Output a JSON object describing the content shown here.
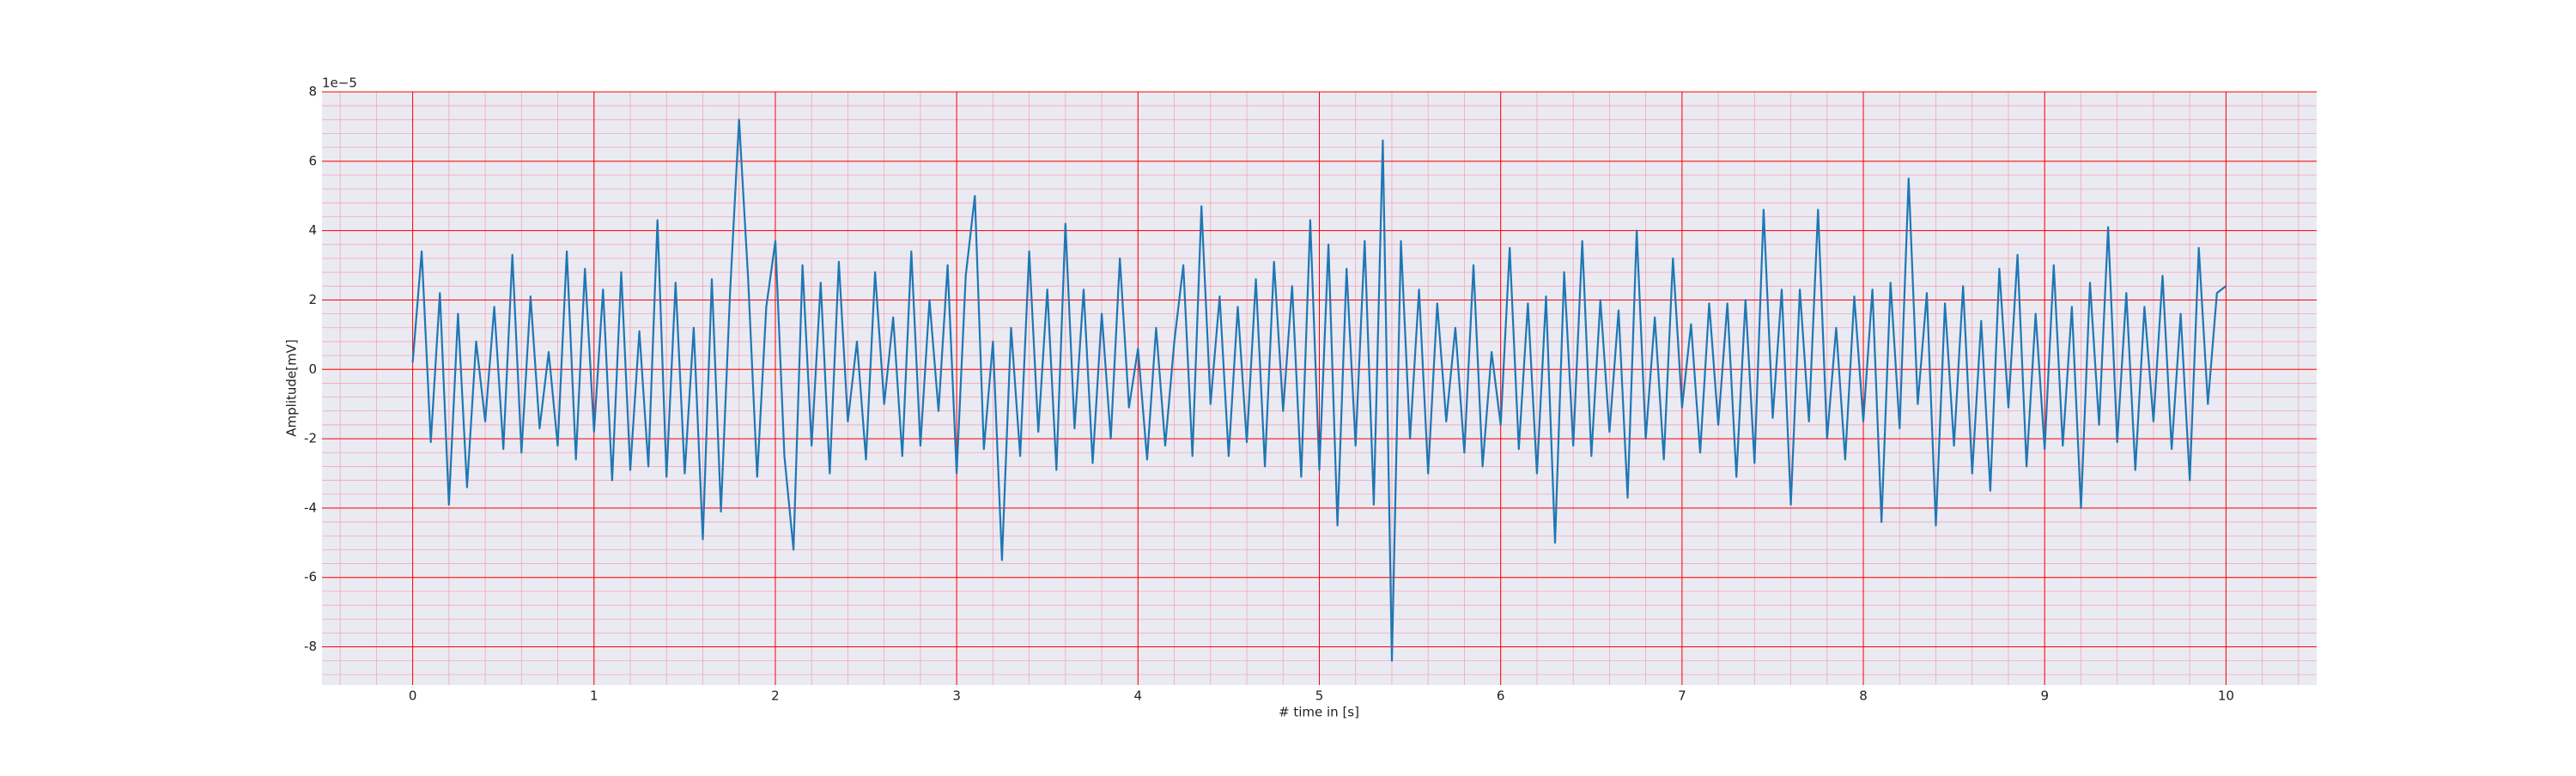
{
  "chart_data": {
    "type": "line",
    "x_label": "# time in [s]",
    "y_label": "Amplitude[mV]",
    "y_offset_label": "1e−5",
    "xlim": [
      -0.5,
      10.5
    ],
    "ylim": [
      -9.1,
      8
    ],
    "xticks": [
      0,
      1,
      2,
      3,
      4,
      5,
      6,
      7,
      8,
      9,
      10
    ],
    "yticks": [
      -8,
      -6,
      -4,
      -2,
      0,
      2,
      4,
      6,
      8
    ],
    "grid": true,
    "minor_grid": true,
    "grid_color": "#ff0000",
    "minor_grid_color": "#f4a6b6",
    "background": "#eaeaf2",
    "x": [
      0,
      0.05,
      0.1,
      0.15,
      0.2,
      0.25,
      0.3,
      0.35,
      0.4,
      0.45,
      0.5,
      0.55,
      0.6,
      0.65,
      0.7,
      0.75,
      0.8,
      0.85,
      0.9,
      0.95,
      1,
      1.05,
      1.1,
      1.15,
      1.2,
      1.25,
      1.3,
      1.35,
      1.4,
      1.45,
      1.5,
      1.55,
      1.6,
      1.65,
      1.7,
      1.75,
      1.8,
      1.85,
      1.9,
      1.95,
      2,
      2.05,
      2.1,
      2.15,
      2.2,
      2.25,
      2.3,
      2.35,
      2.4,
      2.45,
      2.5,
      2.55,
      2.6,
      2.65,
      2.7,
      2.75,
      2.8,
      2.85,
      2.9,
      2.95,
      3,
      3.05,
      3.1,
      3.15,
      3.2,
      3.25,
      3.3,
      3.35,
      3.4,
      3.45,
      3.5,
      3.55,
      3.6,
      3.65,
      3.7,
      3.75,
      3.8,
      3.85,
      3.9,
      3.95,
      4,
      4.05,
      4.1,
      4.15,
      4.2,
      4.25,
      4.3,
      4.35,
      4.4,
      4.45,
      4.5,
      4.55,
      4.6,
      4.65,
      4.7,
      4.75,
      4.8,
      4.85,
      4.9,
      4.95,
      5,
      5.05,
      5.1,
      5.15,
      5.2,
      5.25,
      5.3,
      5.35,
      5.4,
      5.45,
      5.5,
      5.55,
      5.6,
      5.65,
      5.7,
      5.75,
      5.8,
      5.85,
      5.9,
      5.95,
      6,
      6.05,
      6.1,
      6.15,
      6.2,
      6.25,
      6.3,
      6.35,
      6.4,
      6.45,
      6.5,
      6.55,
      6.6,
      6.65,
      6.7,
      6.75,
      6.8,
      6.85,
      6.9,
      6.95,
      7,
      7.05,
      7.1,
      7.15,
      7.2,
      7.25,
      7.3,
      7.35,
      7.4,
      7.45,
      7.5,
      7.55,
      7.6,
      7.65,
      7.7,
      7.75,
      7.8,
      7.85,
      7.9,
      7.95,
      8,
      8.05,
      8.1,
      8.15,
      8.2,
      8.25,
      8.3,
      8.35,
      8.4,
      8.45,
      8.5,
      8.55,
      8.6,
      8.65,
      8.7,
      8.75,
      8.8,
      8.85,
      8.9,
      8.95,
      9,
      9.05,
      9.1,
      9.15,
      9.2,
      9.25,
      9.3,
      9.35,
      9.4,
      9.45,
      9.5,
      9.55,
      9.6,
      9.65,
      9.7,
      9.75,
      9.8,
      9.85,
      9.9,
      9.95,
      10
    ],
    "series": [
      {
        "color": "#1f77b4",
        "values": [
          0.2,
          3.4,
          -2.1,
          2.2,
          -3.9,
          1.6,
          -3.4,
          0.8,
          -1.5,
          1.8,
          -2.3,
          3.3,
          -2.4,
          2.1,
          -1.7,
          0.5,
          -2.2,
          3.4,
          -2.6,
          2.9,
          -1.8,
          2.3,
          -3.2,
          2.8,
          -2.9,
          1.1,
          -2.8,
          4.3,
          -3.1,
          2.5,
          -3.0,
          1.2,
          -4.9,
          2.6,
          -4.1,
          2.2,
          7.2,
          2.6,
          -3.1,
          1.8,
          3.7,
          -2.5,
          -5.2,
          3.0,
          -2.2,
          2.5,
          -3.0,
          3.1,
          -1.5,
          0.8,
          -2.6,
          2.8,
          -1.0,
          1.5,
          -2.5,
          3.4,
          -2.2,
          2.0,
          -1.2,
          3.0,
          -3.0,
          2.7,
          5.0,
          -2.3,
          0.8,
          -5.5,
          1.2,
          -2.5,
          3.4,
          -1.8,
          2.3,
          -2.9,
          4.2,
          -1.7,
          2.3,
          -2.7,
          1.6,
          -2.0,
          3.2,
          -1.1,
          0.6,
          -2.6,
          1.2,
          -2.2,
          0.8,
          3.0,
          -2.5,
          4.7,
          -1.0,
          2.1,
          -2.5,
          1.8,
          -2.1,
          2.6,
          -2.8,
          3.1,
          -1.2,
          2.4,
          -3.1,
          4.3,
          -2.9,
          3.6,
          -4.5,
          2.9,
          -2.2,
          3.7,
          -3.9,
          6.6,
          -8.4,
          3.7,
          -2.0,
          2.3,
          -3.0,
          1.9,
          -1.5,
          1.2,
          -2.4,
          3.0,
          -2.8,
          0.5,
          -1.6,
          3.5,
          -2.3,
          1.9,
          -3.0,
          2.1,
          -5.0,
          2.8,
          -2.2,
          3.7,
          -2.5,
          2.0,
          -1.8,
          1.7,
          -3.7,
          4.0,
          -2.0,
          1.5,
          -2.6,
          3.2,
          -1.1,
          1.3,
          -2.4,
          1.9,
          -1.6,
          1.9,
          -3.1,
          2.0,
          -2.7,
          4.6,
          -1.4,
          2.3,
          -3.9,
          2.3,
          -1.5,
          4.6,
          -2.0,
          1.2,
          -2.6,
          2.1,
          -1.5,
          2.3,
          -4.4,
          2.5,
          -1.7,
          5.5,
          -1.0,
          2.2,
          -4.5,
          1.9,
          -2.2,
          2.4,
          -3.0,
          1.4,
          -3.5,
          2.9,
          -1.1,
          3.3,
          -2.8,
          1.6,
          -2.3,
          3.0,
          -2.2,
          1.8,
          -4.0,
          2.5,
          -1.6,
          4.1,
          -2.1,
          2.2,
          -2.9,
          1.8,
          -1.5,
          2.7,
          -2.3,
          1.6,
          -3.2,
          3.5,
          -1.0,
          2.2,
          2.4
        ]
      }
    ]
  }
}
